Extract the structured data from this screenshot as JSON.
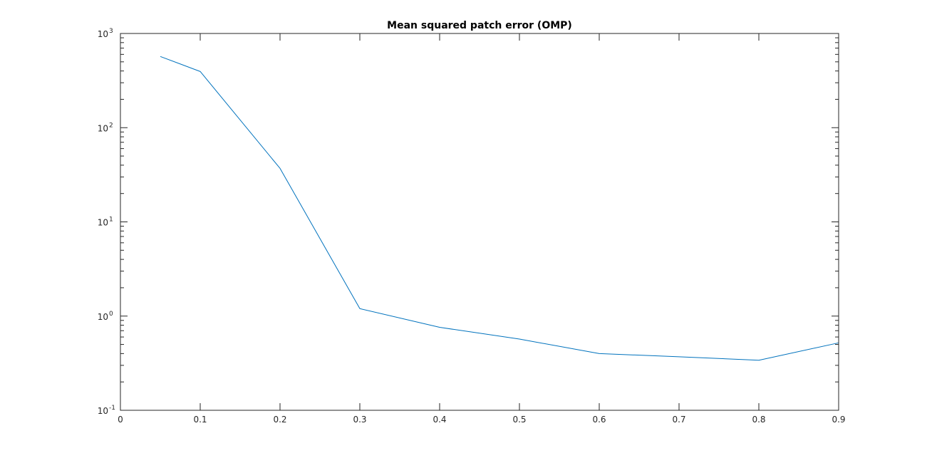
{
  "chart_data": {
    "type": "line",
    "title": "Mean squared patch error (OMP)",
    "xlabel": "",
    "ylabel": "",
    "xlim": [
      0,
      0.9
    ],
    "ylim": [
      0.1,
      1000
    ],
    "yscale": "log",
    "grid": false,
    "x_ticks": [
      "0",
      "0.1",
      "0.2",
      "0.3",
      "0.4",
      "0.5",
      "0.6",
      "0.7",
      "0.8",
      "0.9"
    ],
    "y_ticks": [
      {
        "base": "10",
        "exp": "-1"
      },
      {
        "base": "10",
        "exp": "0"
      },
      {
        "base": "10",
        "exp": "1"
      },
      {
        "base": "10",
        "exp": "2"
      },
      {
        "base": "10",
        "exp": "3"
      }
    ],
    "series": [
      {
        "color": "#0072BD",
        "x": [
          0.05,
          0.1,
          0.2,
          0.3,
          0.4,
          0.5,
          0.6,
          0.7,
          0.8,
          0.9
        ],
        "y": [
          570,
          395,
          37,
          1.2,
          0.76,
          0.57,
          0.4,
          0.37,
          0.34,
          0.52
        ]
      }
    ]
  }
}
